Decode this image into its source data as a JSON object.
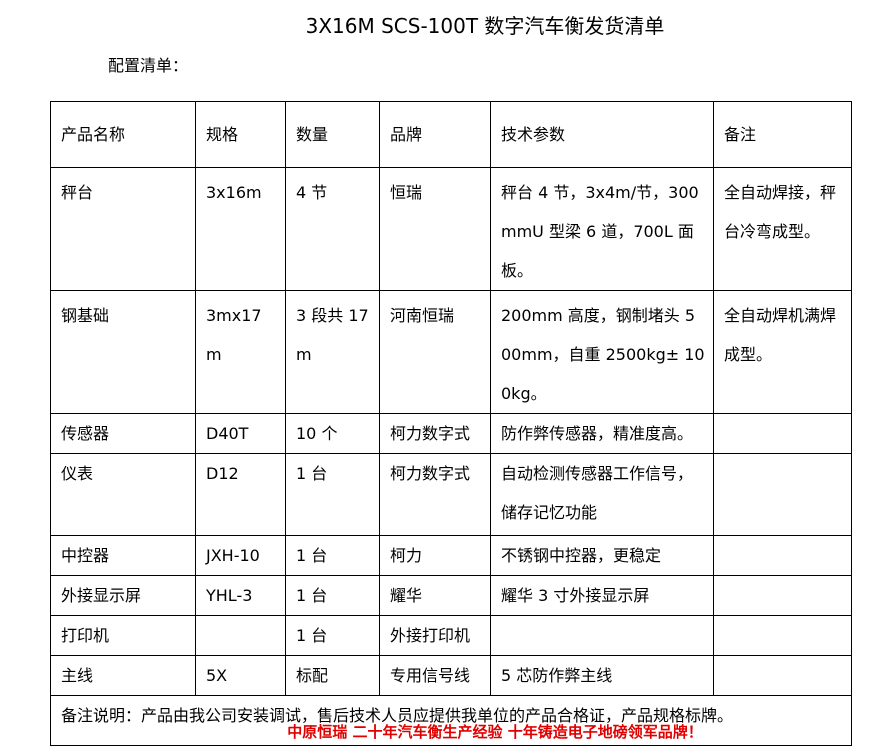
{
  "title": "3X16M SCS-100T 数字汽车衡发货清单",
  "subtitle": "配置清单：",
  "table": {
    "headers": [
      "产品名称",
      "规格",
      "数量",
      "品牌",
      "技术参数",
      "备注"
    ],
    "rows": [
      [
        "秤台",
        "3x16m",
        "4 节",
        "恒瑞",
        "秤台 4 节，3x4m/节，300mmU 型梁 6 道，700L 面板。",
        "全自动焊接，秤台冷弯成型。"
      ],
      [
        "钢基础",
        "3mx17m",
        "3 段共 17m",
        "河南恒瑞",
        "200mm 高度，钢制堵头 500mm，自重 2500kg± 100kg。",
        "全自动焊机满焊成型。"
      ],
      [
        "传感器",
        "D40T",
        "10 个",
        "柯力数字式",
        "防作弊传感器，精准度高。",
        ""
      ],
      [
        "仪表",
        "D12",
        "1 台",
        "柯力数字式",
        "自动检测传感器工作信号，储存记忆功能",
        ""
      ],
      [
        "中控器",
        "JXH-10",
        "1 台",
        "柯力",
        "不锈钢中控器，更稳定",
        ""
      ],
      [
        "外接显示屏",
        "YHL-3",
        "1 台",
        "耀华",
        "耀华 3 寸外接显示屏",
        ""
      ],
      [
        "打印机",
        "",
        "1 台",
        "外接打印机",
        "",
        ""
      ],
      [
        "主线",
        "5X",
        "标配",
        "专用信号线",
        "5 芯防作弊主线",
        ""
      ]
    ],
    "note": "备注说明：产品由我公司安装调试，售后技术人员应提供我单位的产品合格证，产品规格标牌。"
  },
  "footer": "中原恒瑞 二十年汽车衡生产经验 十年铸造电子地磅领军品牌！"
}
